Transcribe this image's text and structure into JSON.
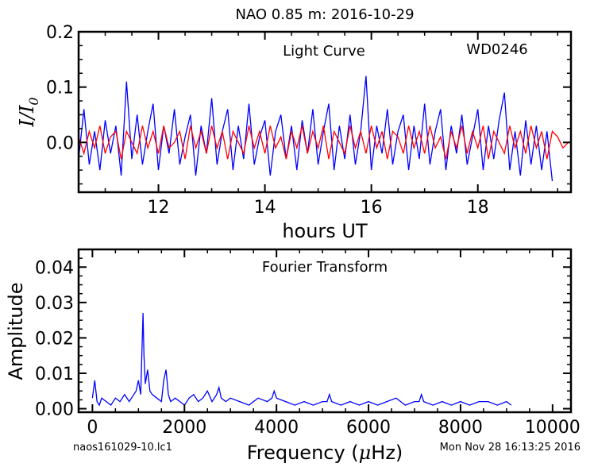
{
  "title": "NAO 0.85 m:  2016-10-29",
  "footer_left": "naos161029-10.lc1",
  "footer_right": "Mon Nov 28 16:13:25 2016",
  "chart_data": [
    {
      "type": "line",
      "panel_label": "Light Curve",
      "target": "WD0246",
      "xlabel": "hours UT",
      "ylabel_base": "I/I",
      "ylabel_sub": "0",
      "xlim": [
        10.5,
        19.75
      ],
      "ylim": [
        -0.09,
        0.2
      ],
      "xticks": [
        12,
        14,
        16,
        18
      ],
      "yticks": [
        0.0,
        0.1,
        0.2
      ],
      "ytick_labels": [
        "0.0",
        "0.1",
        "0.2"
      ],
      "xminor": 0.5,
      "yminor": 0.025,
      "series": [
        {
          "color": "#0000ff",
          "x": [
            10.5,
            10.6,
            10.7,
            10.8,
            10.9,
            11.0,
            11.1,
            11.2,
            11.3,
            11.4,
            11.5,
            11.6,
            11.7,
            11.8,
            11.9,
            12.0,
            12.1,
            12.2,
            12.3,
            12.4,
            12.5,
            12.6,
            12.7,
            12.8,
            12.9,
            13.0,
            13.1,
            13.2,
            13.3,
            13.4,
            13.5,
            13.6,
            13.7,
            13.8,
            13.9,
            14.0,
            14.1,
            14.2,
            14.3,
            14.4,
            14.5,
            14.6,
            14.7,
            14.8,
            14.9,
            15.0,
            15.1,
            15.2,
            15.3,
            15.4,
            15.5,
            15.6,
            15.7,
            15.8,
            15.9,
            16.0,
            16.1,
            16.2,
            16.3,
            16.4,
            16.5,
            16.6,
            16.7,
            16.8,
            16.9,
            17.0,
            17.1,
            17.2,
            17.3,
            17.4,
            17.5,
            17.6,
            17.7,
            17.8,
            17.9,
            18.0,
            18.1,
            18.2,
            18.3,
            18.4,
            18.5,
            18.6,
            18.7,
            18.8,
            18.9,
            19.0,
            19.1,
            19.2,
            19.3,
            19.4
          ],
          "y": [
            -0.03,
            0.06,
            -0.04,
            0.02,
            -0.05,
            0.04,
            -0.02,
            0.03,
            -0.06,
            0.11,
            -0.03,
            0.05,
            -0.04,
            0.02,
            0.07,
            -0.05,
            0.03,
            -0.02,
            0.06,
            -0.04,
            0.01,
            0.05,
            -0.06,
            0.03,
            -0.02,
            0.08,
            -0.04,
            0.02,
            0.06,
            -0.05,
            0.03,
            -0.03,
            0.07,
            -0.04,
            0.01,
            0.04,
            -0.06,
            0.02,
            0.05,
            -0.03,
            0.03,
            -0.05,
            0.04,
            -0.02,
            0.06,
            -0.04,
            0.02,
            0.07,
            -0.05,
            0.03,
            -0.03,
            0.05,
            -0.04,
            0.02,
            0.12,
            -0.05,
            0.03,
            -0.02,
            0.06,
            -0.04,
            0.02,
            0.05,
            -0.05,
            0.03,
            -0.03,
            0.07,
            -0.04,
            0.02,
            0.06,
            -0.05,
            0.03,
            -0.02,
            0.05,
            -0.04,
            0.01,
            0.06,
            -0.05,
            0.03,
            -0.03,
            0.04,
            0.09,
            -0.05,
            0.02,
            -0.06,
            0.04,
            -0.04,
            0.03,
            -0.05,
            0.02,
            -0.07
          ]
        },
        {
          "color": "#ff0000",
          "x": [
            10.5,
            10.6,
            10.7,
            10.8,
            10.9,
            11.0,
            11.1,
            11.2,
            11.3,
            11.4,
            11.5,
            11.6,
            11.7,
            11.8,
            11.9,
            12.0,
            12.1,
            12.2,
            12.3,
            12.4,
            12.5,
            12.6,
            12.7,
            12.8,
            12.9,
            13.0,
            13.1,
            13.2,
            13.3,
            13.4,
            13.5,
            13.6,
            13.7,
            13.8,
            13.9,
            14.0,
            14.1,
            14.2,
            14.3,
            14.4,
            14.5,
            14.6,
            14.7,
            14.8,
            14.9,
            15.0,
            15.1,
            15.2,
            15.3,
            15.4,
            15.5,
            15.6,
            15.7,
            15.8,
            15.9,
            16.0,
            16.1,
            16.2,
            16.3,
            16.4,
            16.5,
            16.6,
            16.7,
            16.8,
            16.9,
            17.0,
            17.1,
            17.2,
            17.3,
            17.4,
            17.5,
            17.6,
            17.7,
            17.8,
            17.9,
            18.0,
            18.1,
            18.2,
            18.3,
            18.4,
            18.5,
            18.6,
            18.7,
            18.8,
            18.9,
            19.0,
            19.1,
            19.2,
            19.3,
            19.4,
            19.5,
            19.6,
            19.7
          ],
          "y": [
            0.01,
            -0.02,
            0.02,
            -0.01,
            0.03,
            -0.02,
            0.01,
            0.02,
            -0.03,
            0.02,
            0.0,
            -0.02,
            0.03,
            -0.01,
            0.02,
            -0.02,
            0.03,
            -0.01,
            0.0,
            0.02,
            -0.03,
            0.03,
            -0.01,
            0.02,
            -0.02,
            0.03,
            -0.01,
            0.02,
            -0.03,
            0.02,
            0.0,
            -0.02,
            0.03,
            -0.01,
            0.02,
            -0.02,
            0.03,
            -0.01,
            0.01,
            -0.03,
            0.02,
            -0.01,
            0.03,
            -0.02,
            0.02,
            -0.01,
            0.03,
            -0.03,
            0.02,
            0.0,
            -0.02,
            0.03,
            -0.01,
            0.02,
            -0.02,
            0.03,
            -0.01,
            0.02,
            -0.03,
            0.02,
            0.01,
            -0.02,
            0.03,
            -0.01,
            0.02,
            -0.02,
            0.03,
            -0.01,
            0.01,
            -0.03,
            0.02,
            -0.01,
            0.03,
            -0.02,
            0.02,
            -0.01,
            0.03,
            -0.03,
            0.02,
            0.0,
            -0.02,
            0.03,
            -0.01,
            0.02,
            -0.02,
            0.03,
            -0.01,
            0.02,
            -0.03,
            0.02,
            0.01,
            -0.01,
            0.0
          ]
        }
      ]
    },
    {
      "type": "line",
      "panel_label": "Fourier Transform",
      "xlabel_main": "Frequency (",
      "xlabel_mu": "μ",
      "xlabel_end": "Hz)",
      "ylabel": "Amplitude",
      "xlim": [
        -300,
        10400
      ],
      "ylim": [
        -0.001,
        0.045
      ],
      "xticks": [
        0,
        2000,
        4000,
        6000,
        8000,
        10000
      ],
      "yticks": [
        0.0,
        0.01,
        0.02,
        0.03,
        0.04
      ],
      "ytick_labels": [
        "0.00",
        "0.01",
        "0.02",
        "0.03",
        "0.04"
      ],
      "xminor": 500,
      "yminor": 0.0025,
      "series": [
        {
          "color": "#0000ff",
          "x": [
            0,
            50,
            100,
            150,
            200,
            300,
            400,
            500,
            600,
            700,
            800,
            900,
            950,
            1000,
            1050,
            1100,
            1120,
            1150,
            1200,
            1250,
            1300,
            1400,
            1500,
            1550,
            1600,
            1650,
            1700,
            1800,
            1900,
            2000,
            2100,
            2200,
            2300,
            2400,
            2500,
            2600,
            2700,
            2750,
            2800,
            2900,
            3000,
            3200,
            3400,
            3600,
            3800,
            3900,
            3950,
            4000,
            4200,
            4400,
            4600,
            4800,
            5000,
            5100,
            5150,
            5200,
            5400,
            5600,
            5800,
            6000,
            6200,
            6400,
            6600,
            6800,
            7000,
            7100,
            7150,
            7200,
            7400,
            7600,
            7800,
            8000,
            8200,
            8400,
            8600,
            8800,
            9000,
            9100
          ],
          "y": [
            0.003,
            0.008,
            0.002,
            0.001,
            0.003,
            0.002,
            0.001,
            0.003,
            0.002,
            0.004,
            0.002,
            0.004,
            0.005,
            0.008,
            0.004,
            0.027,
            0.015,
            0.007,
            0.011,
            0.005,
            0.004,
            0.003,
            0.002,
            0.008,
            0.011,
            0.004,
            0.002,
            0.003,
            0.002,
            0.001,
            0.003,
            0.004,
            0.002,
            0.003,
            0.005,
            0.002,
            0.004,
            0.006,
            0.003,
            0.002,
            0.003,
            0.002,
            0.001,
            0.003,
            0.002,
            0.003,
            0.005,
            0.003,
            0.002,
            0.001,
            0.002,
            0.001,
            0.002,
            0.002,
            0.004,
            0.002,
            0.001,
            0.002,
            0.001,
            0.002,
            0.001,
            0.002,
            0.003,
            0.001,
            0.002,
            0.002,
            0.004,
            0.002,
            0.001,
            0.002,
            0.001,
            0.002,
            0.001,
            0.002,
            0.002,
            0.001,
            0.002,
            0.001
          ]
        }
      ]
    }
  ]
}
